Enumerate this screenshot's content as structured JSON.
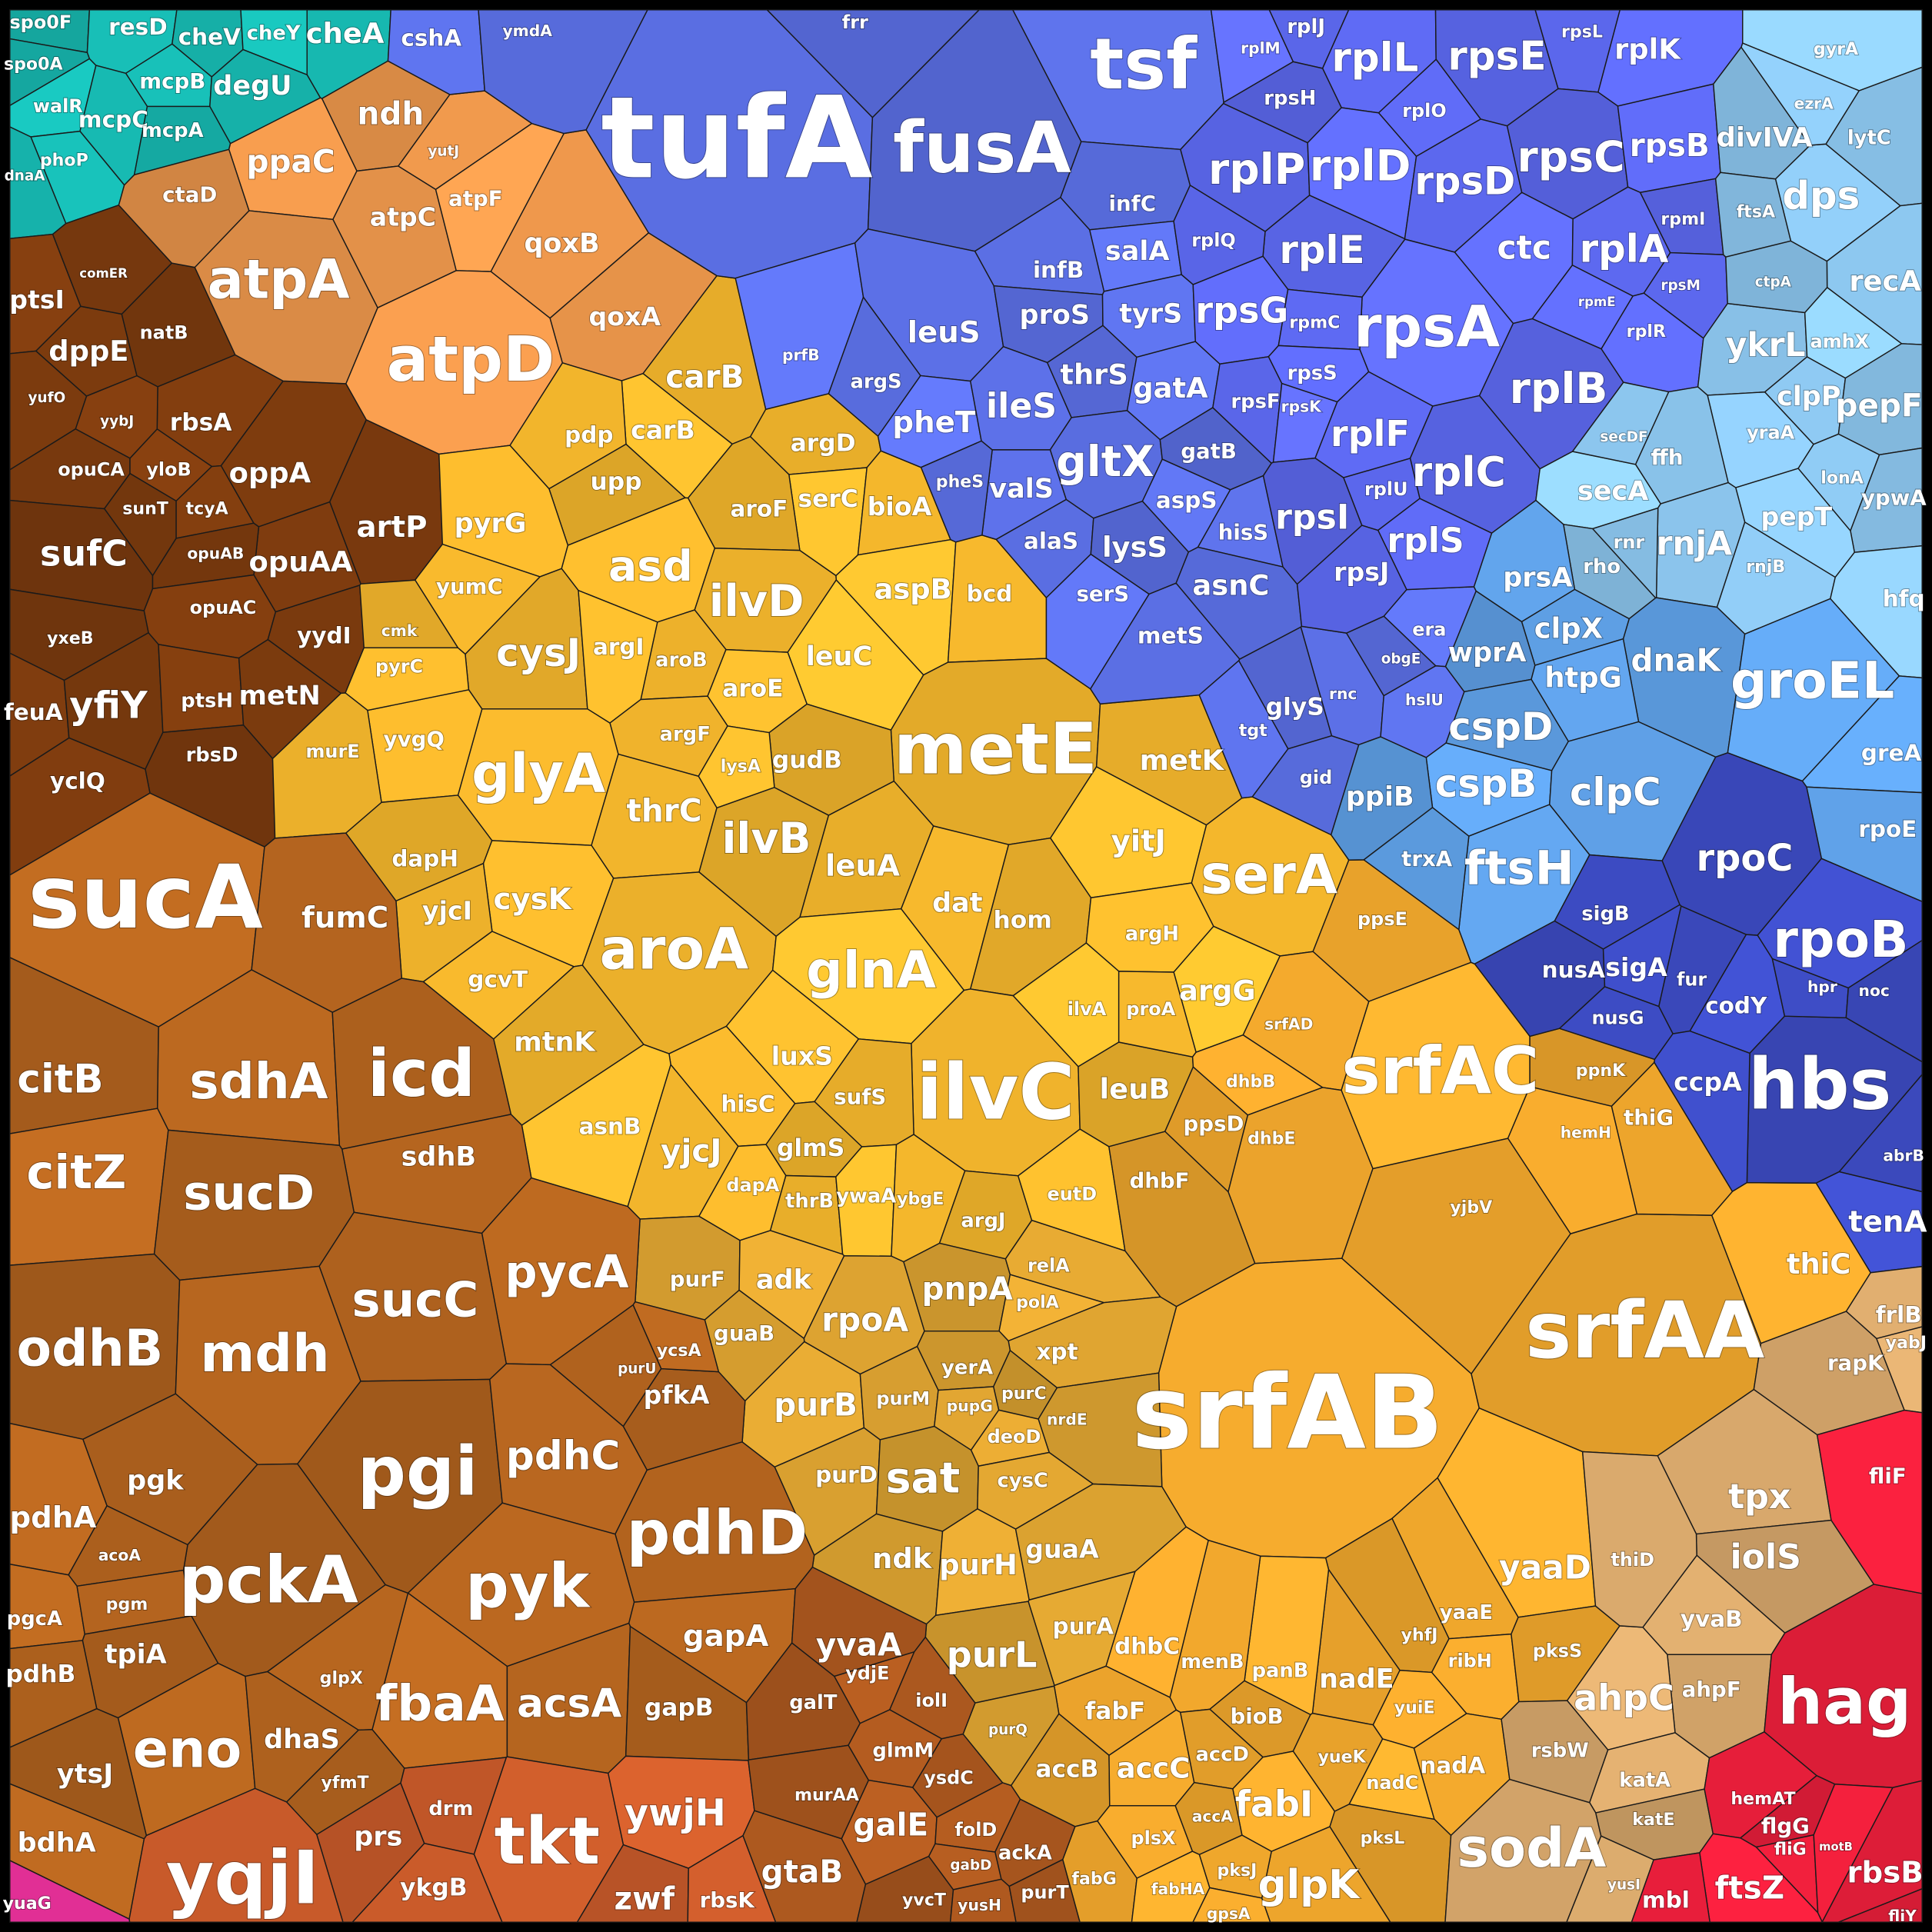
{
  "groups": [
    {
      "id": "teal",
      "color": "#17b8b0",
      "genes": [
        "spo0F",
        "resD",
        "cheV",
        "cheY",
        "cheA",
        "spo0A",
        "mcpB",
        "degU",
        "walR",
        "mcpC",
        "mcpA",
        "phoP",
        "dnaA"
      ]
    },
    {
      "id": "transport",
      "color": "#7a3a0e",
      "genes": [
        "ptsI",
        "dppE",
        "natB",
        "rbsA",
        "opuCA",
        "yloB",
        "oppA",
        "sunT",
        "tcyA",
        "artP",
        "sufC",
        "opuAA",
        "opuAB",
        "opuAC",
        "yydI",
        "yxeB",
        "feuA",
        "yfiY",
        "ptsH",
        "metN",
        "rbsD",
        "yclQ",
        "comER",
        "yybJ",
        "yufO"
      ]
    },
    {
      "id": "atp",
      "color": "#e8944a",
      "genes": [
        "ndh",
        "ppaC",
        "atpC",
        "atpF",
        "qoxB",
        "atpA",
        "atpD",
        "qoxA",
        "ctaD",
        "yutJ"
      ]
    },
    {
      "id": "aminoacid",
      "color": "#f2b52c",
      "genes": [
        "carB",
        "carB",
        "pdp",
        "upp",
        "pyrG",
        "argD",
        "serC",
        "bioA",
        "aroF",
        "asd",
        "ilvD",
        "aspB",
        "bcd",
        "cysJ",
        "argI",
        "aroB",
        "leuC",
        "yumC",
        "metE",
        "aroE",
        "argF",
        "gudB",
        "glyA",
        "metK",
        "lysA",
        "thrC",
        "ilvB",
        "yvgQ",
        "leuA",
        "yitJ",
        "serA",
        "dapH",
        "cysK",
        "aroA",
        "glnA",
        "dat",
        "hom",
        "argH",
        "yjcI",
        "argG",
        "gcvT",
        "mtnK",
        "luxS",
        "ilvC",
        "leuB",
        "hisC",
        "sufS",
        "asnB",
        "yjcJ",
        "glmS",
        "dapA",
        "thrB",
        "ywaA",
        "ybgE",
        "argJ",
        "pyrC",
        "murE",
        "ilvA",
        "proA",
        "cmk",
        "eutD"
      ]
    },
    {
      "id": "srf",
      "color": "#eda52c",
      "genes": [
        "ppsE",
        "srfAC",
        "srfAD",
        "ppsD",
        "dhbB",
        "dhbE",
        "dhbF",
        "srfAB",
        "srfAA",
        "thiC",
        "thiG",
        "ppnK",
        "hemH",
        "yjbV",
        "yaaD",
        "yaaE",
        "yhfJ",
        "ribH",
        "nadE",
        "panB",
        "menB",
        "bioB",
        "yuiE",
        "yueK",
        "nadC",
        "nadA",
        "pksS",
        "dhbC",
        "fabF",
        "accB",
        "accC",
        "accD",
        "fabI",
        "glpK",
        "pksL",
        "plsX",
        "fabG",
        "fabHA",
        "pksJ",
        "accA",
        "gpsA"
      ]
    },
    {
      "id": "nucleotide",
      "color": "#d9a030",
      "genes": [
        "purF",
        "adk",
        "rpoA",
        "pnpA",
        "relA",
        "guaB",
        "polA",
        "xpt",
        "yerA",
        "purB",
        "purM",
        "purC",
        "pupG",
        "nrdE",
        "deoD",
        "purD",
        "sat",
        "cysC",
        "ndk",
        "purH",
        "guaA",
        "purL",
        "purA",
        "purQ"
      ]
    },
    {
      "id": "metabolism",
      "color": "#b0621e",
      "genes": [
        "sucA",
        "fumC",
        "citB",
        "sdhA",
        "icd",
        "citZ",
        "sdhB",
        "sucD",
        "pycA",
        "sucC",
        "odhB",
        "mdh",
        "pfkA",
        "ycsA",
        "purU",
        "pgi",
        "pdhC",
        "pgk",
        "pdhA",
        "pdhD",
        "pckA",
        "pyk",
        "acoA",
        "pgcA",
        "pgm",
        "tpiA",
        "gapA",
        "pdhB",
        "fbaA",
        "acsA",
        "gapB",
        "eno",
        "dhaS",
        "ytsJ",
        "glpX",
        "yfmT",
        "bdhA"
      ]
    },
    {
      "id": "pentose",
      "color": "#c85a2a",
      "genes": [
        "yqjI",
        "prs",
        "tkt",
        "drm",
        "ywjH",
        "ykgB",
        "zwf",
        "rbsK"
      ]
    },
    {
      "id": "sugar",
      "color": "#a8561e",
      "genes": [
        "yvaA",
        "ydjE",
        "iolI",
        "galT",
        "glmM",
        "ysdC",
        "galE",
        "gtaB",
        "murAA",
        "folD",
        "ackA",
        "yvcT",
        "yusH",
        "purT",
        "gabD"
      ]
    },
    {
      "id": "trna",
      "color": "#5a6ee2",
      "genes": [
        "tufA",
        "fusA",
        "tsf",
        "infC",
        "salA",
        "infB",
        "frr",
        "cshA",
        "ymdA",
        "prfB",
        "leuS",
        "proS",
        "tyrS",
        "argS",
        "pheT",
        "ileS",
        "thrS",
        "gatA",
        "gltX",
        "gatB",
        "valS",
        "pheS",
        "aspS",
        "alaS",
        "lysS",
        "hisS",
        "asnC",
        "serS",
        "metS",
        "glyS",
        "tgt",
        "gid",
        "era",
        "rnc",
        "obgE",
        "hslU"
      ]
    },
    {
      "id": "ribosome",
      "color": "#5c68ee",
      "genes": [
        "rplJ",
        "rplM",
        "rplL",
        "rpsE",
        "rplK",
        "rpsL",
        "rpsH",
        "rplO",
        "rplP",
        "rplD",
        "rpsD",
        "rpsC",
        "rpsB",
        "rplE",
        "ctc",
        "rplA",
        "rpmI",
        "rpsG",
        "rplQ",
        "rpsA",
        "rpmC",
        "rplB",
        "rpsS",
        "rpsF",
        "rpsK",
        "rplF",
        "rplC",
        "rplR",
        "rplU",
        "rpsI",
        "rplS",
        "rpsJ",
        "rpmE",
        "rpsM"
      ]
    },
    {
      "id": "cellcycle",
      "color": "#8cc6ee",
      "genes": [
        "divIVA",
        "dps",
        "lytC",
        "gyrA",
        "recA",
        "ftsA",
        "ezrA",
        "ykrL",
        "amhX",
        "clpP",
        "pepF",
        "yraA",
        "ffh",
        "secA",
        "lonA",
        "ypwA",
        "pepT",
        "rnjA",
        "rho",
        "rnjB",
        "rnr",
        "hfq",
        "secDF",
        "ctpA"
      ]
    },
    {
      "id": "chaperone",
      "color": "#5d9de2",
      "genes": [
        "prsA",
        "dnaK",
        "groEL",
        "clpX",
        "wprA",
        "htpG",
        "cspD",
        "cspB",
        "clpC",
        "ppiB",
        "ftsH",
        "trxA",
        "greA",
        "rpoE"
      ]
    },
    {
      "id": "transcription",
      "color": "#3d4cc4",
      "genes": [
        "rpoC",
        "rpoB",
        "sigB",
        "nusA",
        "sigA",
        "fur",
        "codY",
        "nusG",
        "hbs",
        "ccpA",
        "abrB",
        "tenA",
        "hpr",
        "noc"
      ]
    },
    {
      "id": "stress",
      "color": "#d4a56a",
      "genes": [
        "frlB",
        "rapK",
        "yabJ",
        "tpx",
        "iolS",
        "yvaB",
        "ahpF",
        "ahpC",
        "thiD",
        "rsbW",
        "katA",
        "sodA",
        "katE",
        "yusI"
      ]
    },
    {
      "id": "motility",
      "color": "#e61e3a",
      "genes": [
        "hag",
        "fliF",
        "hemAT",
        "flgG",
        "fliG",
        "rbsB",
        "ftsZ",
        "mbl",
        "fliY",
        "motB"
      ]
    },
    {
      "id": "misc",
      "color": "#e8309a",
      "genes": [
        "yuaG"
      ]
    }
  ]
}
